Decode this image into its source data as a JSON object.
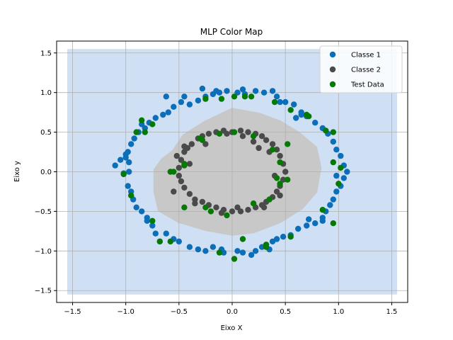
{
  "chart_data": {
    "type": "scatter",
    "title": "MLP Color Map",
    "xlabel": "Eixo X",
    "ylabel": "Eixo y",
    "xlim": [
      -1.65,
      1.65
    ],
    "ylim": [
      -1.65,
      1.65
    ],
    "xticks": [
      "−1.5",
      "−1.0",
      "−0.5",
      "0.0",
      "0.5",
      "1.0",
      "1.5"
    ],
    "yticks": [
      "−1.5",
      "−1.0",
      "−0.5",
      "0.0",
      "0.5",
      "1.0",
      "1.5"
    ],
    "xtick_values": [
      -1.5,
      -1.0,
      -0.5,
      0.0,
      0.5,
      1.0,
      1.5
    ],
    "ytick_values": [
      -1.5,
      -1.0,
      -0.5,
      0.0,
      0.5,
      1.0,
      1.5
    ],
    "grid": true,
    "legend_position": "top-right",
    "decision_regions": {
      "outer_extent": [
        -1.55,
        1.55,
        -1.55,
        1.55
      ],
      "outer_color": "#cfe0f5",
      "inner_color": "#c8c8c8",
      "inner_boundary": [
        [
          -0.55,
          0.25
        ],
        [
          -0.45,
          0.45
        ],
        [
          -0.25,
          0.62
        ],
        [
          0.0,
          0.78
        ],
        [
          0.25,
          0.72
        ],
        [
          0.45,
          0.62
        ],
        [
          0.62,
          0.48
        ],
        [
          0.78,
          0.3
        ],
        [
          0.82,
          0.05
        ],
        [
          0.78,
          -0.25
        ],
        [
          0.65,
          -0.45
        ],
        [
          0.45,
          -0.62
        ],
        [
          0.2,
          -0.75
        ],
        [
          0.0,
          -0.78
        ],
        [
          -0.25,
          -0.72
        ],
        [
          -0.5,
          -0.62
        ],
        [
          -0.68,
          -0.48
        ],
        [
          -0.72,
          -0.25
        ],
        [
          -0.72,
          0.02
        ],
        [
          -0.65,
          0.15
        ]
      ]
    },
    "series": [
      {
        "name": "Classe 1",
        "color": "#1f77b4",
        "marker_color": "#0a6eb8",
        "points": [
          [
            -1.1,
            0.08
          ],
          [
            -1.05,
            0.15
          ],
          [
            -1.0,
            0.22
          ],
          [
            -0.97,
            0.12
          ],
          [
            -1.02,
            -0.02
          ],
          [
            -0.98,
            -0.18
          ],
          [
            -0.95,
            -0.25
          ],
          [
            -0.93,
            -0.35
          ],
          [
            -0.9,
            -0.45
          ],
          [
            -0.85,
            -0.5
          ],
          [
            -0.8,
            -0.58
          ],
          [
            -0.75,
            -0.68
          ],
          [
            -0.72,
            -0.78
          ],
          [
            -0.68,
            -0.88
          ],
          [
            -0.62,
            -0.78
          ],
          [
            -0.55,
            -0.85
          ],
          [
            -0.5,
            -0.88
          ],
          [
            -0.4,
            -0.95
          ],
          [
            -0.32,
            -0.98
          ],
          [
            -0.25,
            -1.0
          ],
          [
            -0.18,
            -0.95
          ],
          [
            -0.08,
            -1.02
          ],
          [
            0.05,
            -1.0
          ],
          [
            0.1,
            -1.02
          ],
          [
            0.18,
            -1.05
          ],
          [
            0.22,
            -1.0
          ],
          [
            0.28,
            -0.95
          ],
          [
            0.32,
            -0.92
          ],
          [
            0.38,
            -0.88
          ],
          [
            0.42,
            -0.85
          ],
          [
            0.48,
            -0.82
          ],
          [
            0.55,
            -0.8
          ],
          [
            0.62,
            -0.72
          ],
          [
            0.7,
            -0.68
          ],
          [
            0.78,
            -0.65
          ],
          [
            0.85,
            -0.58
          ],
          [
            0.88,
            -0.5
          ],
          [
            0.92,
            -0.42
          ],
          [
            0.95,
            -0.35
          ],
          [
            0.98,
            -0.25
          ],
          [
            1.02,
            -0.18
          ],
          [
            1.05,
            -0.08
          ],
          [
            1.08,
            0.0
          ],
          [
            1.05,
            0.08
          ],
          [
            1.02,
            0.2
          ],
          [
            0.98,
            0.28
          ],
          [
            0.95,
            0.38
          ],
          [
            0.9,
            0.48
          ],
          [
            0.85,
            0.55
          ],
          [
            0.78,
            0.62
          ],
          [
            0.7,
            0.7
          ],
          [
            0.65,
            0.75
          ],
          [
            0.58,
            0.85
          ],
          [
            0.5,
            0.88
          ],
          [
            0.42,
            0.95
          ],
          [
            0.38,
            1.02
          ],
          [
            0.3,
            1.0
          ],
          [
            0.22,
            1.02
          ],
          [
            0.12,
            0.98
          ],
          [
            0.05,
            1.0
          ],
          [
            -0.05,
            1.02
          ],
          [
            -0.12,
            1.0
          ],
          [
            -0.18,
            0.98
          ],
          [
            -0.25,
            0.95
          ],
          [
            -0.32,
            0.9
          ],
          [
            -0.4,
            0.85
          ],
          [
            -0.48,
            0.88
          ],
          [
            -0.55,
            0.82
          ],
          [
            -0.6,
            0.75
          ],
          [
            -0.65,
            0.72
          ],
          [
            -0.72,
            0.68
          ],
          [
            -0.78,
            0.62
          ],
          [
            -0.82,
            0.55
          ],
          [
            -0.88,
            0.5
          ],
          [
            -0.92,
            0.42
          ],
          [
            -0.95,
            0.35
          ],
          [
            -0.98,
            0.25
          ],
          [
            -1.0,
            0.18
          ],
          [
            -0.62,
            0.95
          ],
          [
            -0.45,
            0.95
          ],
          [
            -0.28,
            1.05
          ],
          [
            -0.15,
            1.02
          ],
          [
            0.65,
            0.72
          ],
          [
            0.72,
            -0.6
          ],
          [
            0.85,
            -0.62
          ],
          [
            -0.8,
            -0.62
          ],
          [
            -0.97,
            0.0
          ],
          [
            0.98,
            -0.05
          ],
          [
            0.1,
            1.04
          ],
          [
            -0.85,
            0.6
          ],
          [
            0.6,
            0.68
          ],
          [
            0.35,
            -0.98
          ],
          [
            -0.1,
            -0.98
          ],
          [
            0.45,
            0.88
          ]
        ]
      },
      {
        "name": "Classe 2",
        "color": "#4d4d4d",
        "marker_color": "#4a4a4a",
        "points": [
          [
            -0.5,
            0.05
          ],
          [
            -0.48,
            0.15
          ],
          [
            -0.45,
            0.25
          ],
          [
            -0.42,
            0.3
          ],
          [
            -0.38,
            0.35
          ],
          [
            -0.32,
            0.42
          ],
          [
            -0.28,
            0.45
          ],
          [
            -0.22,
            0.48
          ],
          [
            -0.15,
            0.5
          ],
          [
            -0.08,
            0.52
          ],
          [
            0.0,
            0.5
          ],
          [
            0.08,
            0.52
          ],
          [
            0.15,
            0.5
          ],
          [
            0.22,
            0.48
          ],
          [
            0.28,
            0.45
          ],
          [
            0.32,
            0.4
          ],
          [
            0.38,
            0.35
          ],
          [
            0.42,
            0.28
          ],
          [
            0.45,
            0.2
          ],
          [
            0.48,
            0.1
          ],
          [
            0.5,
            0.0
          ],
          [
            0.48,
            -0.1
          ],
          [
            0.45,
            -0.18
          ],
          [
            0.42,
            -0.25
          ],
          [
            0.38,
            -0.32
          ],
          [
            0.32,
            -0.38
          ],
          [
            0.28,
            -0.42
          ],
          [
            0.22,
            -0.45
          ],
          [
            0.15,
            -0.48
          ],
          [
            0.08,
            -0.5
          ],
          [
            0.0,
            -0.5
          ],
          [
            -0.08,
            -0.48
          ],
          [
            -0.15,
            -0.45
          ],
          [
            -0.22,
            -0.42
          ],
          [
            -0.28,
            -0.38
          ],
          [
            -0.35,
            -0.35
          ],
          [
            -0.4,
            -0.28
          ],
          [
            -0.45,
            -0.2
          ],
          [
            -0.48,
            -0.12
          ],
          [
            -0.5,
            -0.05
          ],
          [
            -0.55,
            -0.25
          ],
          [
            -0.52,
            0.2
          ],
          [
            -0.25,
            0.35
          ],
          [
            0.1,
            0.45
          ],
          [
            0.35,
            0.25
          ],
          [
            0.4,
            -0.05
          ],
          [
            0.3,
            -0.45
          ],
          [
            -0.1,
            -0.52
          ],
          [
            -0.35,
            -0.4
          ],
          [
            -0.45,
            0.32
          ],
          [
            0.2,
            0.38
          ],
          [
            0.45,
            -0.3
          ],
          [
            -0.05,
            0.48
          ],
          [
            0.05,
            -0.45
          ],
          [
            0.25,
            0.3
          ],
          [
            -0.4,
            0.1
          ]
        ]
      },
      {
        "name": "Test Data",
        "color": "#008000",
        "marker_color": "#047a04",
        "points": [
          [
            -0.9,
            0.5
          ],
          [
            -0.82,
            0.5
          ],
          [
            -0.85,
            0.65
          ],
          [
            -0.95,
            -0.3
          ],
          [
            -1.02,
            -0.03
          ],
          [
            -0.75,
            -0.62
          ],
          [
            -0.58,
            -0.88
          ],
          [
            -0.45,
            -0.45
          ],
          [
            -0.55,
            0.0
          ],
          [
            -0.45,
            0.1
          ],
          [
            -0.28,
            0.4
          ],
          [
            -0.12,
            0.48
          ],
          [
            0.02,
            0.5
          ],
          [
            0.2,
            0.45
          ],
          [
            0.38,
            0.28
          ],
          [
            0.45,
            0.12
          ],
          [
            0.45,
            -0.15
          ],
          [
            0.35,
            -0.35
          ],
          [
            0.2,
            -0.4
          ],
          [
            -0.05,
            -0.55
          ],
          [
            -0.2,
            -0.5
          ],
          [
            -0.3,
            0.42
          ],
          [
            0.1,
            -0.85
          ],
          [
            0.02,
            -1.1
          ],
          [
            -0.12,
            -1.02
          ],
          [
            0.32,
            -0.95
          ],
          [
            0.55,
            -0.82
          ],
          [
            0.85,
            -0.48
          ],
          [
            0.95,
            -0.65
          ],
          [
            1.0,
            -0.15
          ],
          [
            1.02,
            0.05
          ],
          [
            0.95,
            0.12
          ],
          [
            0.95,
            0.5
          ],
          [
            0.88,
            0.52
          ],
          [
            0.72,
            0.7
          ],
          [
            0.55,
            0.78
          ],
          [
            0.4,
            0.88
          ],
          [
            0.18,
            0.95
          ],
          [
            -0.1,
            0.92
          ],
          [
            -0.25,
            0.92
          ],
          [
            -0.75,
            0.6
          ],
          [
            -0.58,
            0.0
          ],
          [
            -0.45,
            0.08
          ],
          [
            0.52,
            0.35
          ],
          [
            0.52,
            -0.1
          ],
          [
            0.42,
            -0.08
          ],
          [
            -0.25,
            -0.45
          ],
          [
            0.32,
            -0.92
          ],
          [
            -0.68,
            -0.88
          ],
          [
            0.7,
            0.72
          ],
          [
            0.02,
            0.95
          ],
          [
            0.12,
            0.95
          ]
        ]
      }
    ]
  },
  "legend": {
    "items": [
      "Classe 1",
      "Classe 2",
      "Test Data"
    ]
  }
}
